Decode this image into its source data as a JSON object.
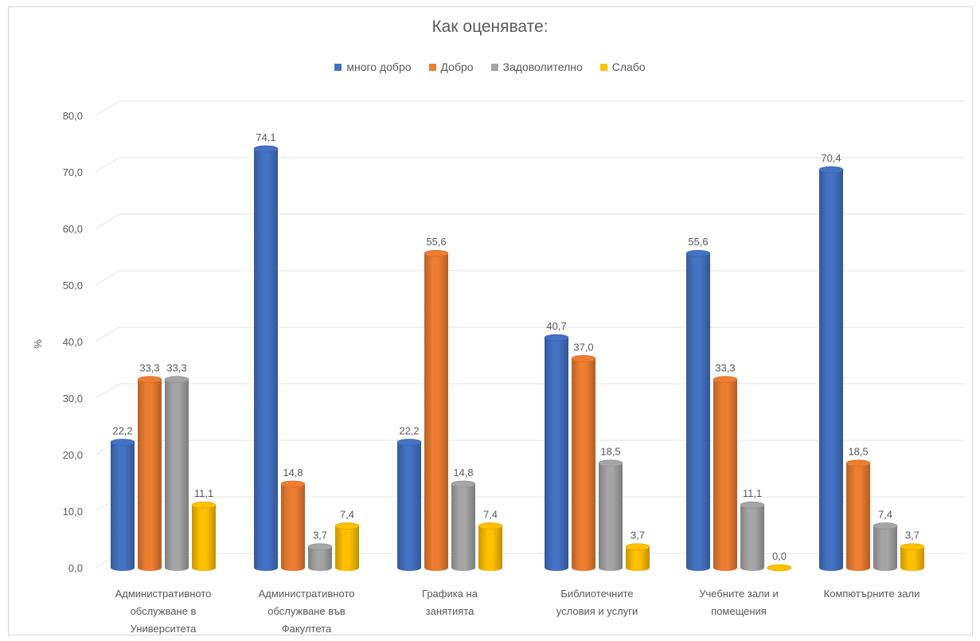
{
  "chart_data": {
    "type": "bar",
    "title": "Как оценявате:",
    "ylabel": "%",
    "ylim": [
      0,
      80
    ],
    "yticks": [
      "0,0",
      "10,0",
      "20,0",
      "30,0",
      "40,0",
      "50,0",
      "60,0",
      "70,0",
      "80,0"
    ],
    "grid": true,
    "legend_position": "top",
    "categories": [
      [
        "Административното",
        "обслужване в",
        "Университета"
      ],
      [
        "Административното",
        "обслужване във",
        "Факултета"
      ],
      [
        "Графика на",
        "занятията"
      ],
      [
        "Библиотечните",
        "условия и услуги"
      ],
      [
        "Учебните зали и",
        "помещения"
      ],
      [
        "Компютърните зали"
      ]
    ],
    "series": [
      {
        "name": "много добро",
        "color": "#4472c4",
        "values": [
          22.2,
          74.1,
          22.2,
          40.7,
          55.6,
          70.4
        ],
        "labels": [
          "22,2",
          "74,1",
          "22,2",
          "40,7",
          "55,6",
          "70,4"
        ]
      },
      {
        "name": "Добро",
        "color": "#ed7d31",
        "values": [
          33.3,
          14.8,
          55.6,
          37.0,
          33.3,
          18.5
        ],
        "labels": [
          "33,3",
          "14,8",
          "55,6",
          "37,0",
          "33,3",
          "18,5"
        ]
      },
      {
        "name": "Задоволително",
        "color": "#a5a5a5",
        "values": [
          33.3,
          3.7,
          14.8,
          18.5,
          11.1,
          7.4
        ],
        "labels": [
          "33,3",
          "3,7",
          "14,8",
          "18,5",
          "11,1",
          "7,4"
        ]
      },
      {
        "name": "Слабо",
        "color": "#ffc000",
        "values": [
          11.1,
          7.4,
          7.4,
          3.7,
          0.0,
          3.7
        ],
        "labels": [
          "11,1",
          "7,4",
          "7,4",
          "3,7",
          "0,0",
          "3,7"
        ]
      }
    ]
  }
}
